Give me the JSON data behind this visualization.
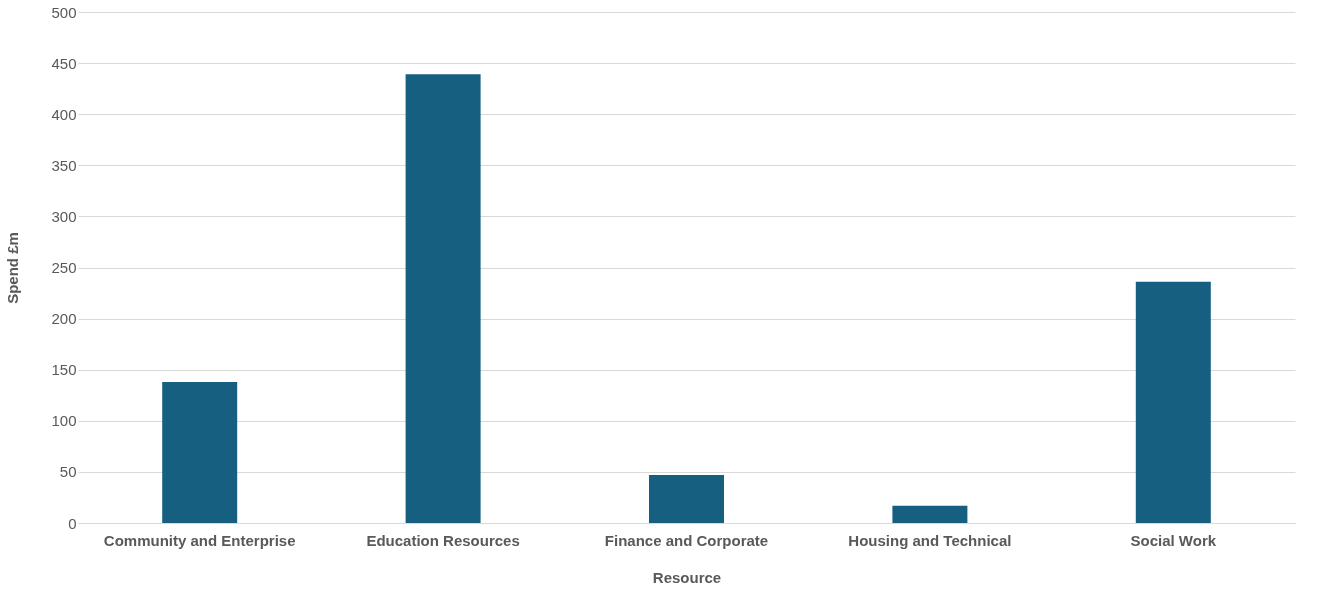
{
  "chart_data": {
    "type": "bar",
    "xlabel": "Resource",
    "ylabel": "Spend £m",
    "categories": [
      "Community and Enterprise",
      "Education Resources",
      "Finance and Corporate",
      "Housing and Technical",
      "Social Work"
    ],
    "values": [
      138,
      439,
      47,
      17,
      236
    ],
    "color": "#165f80",
    "ylim": [
      0,
      500
    ],
    "yticks": [
      0,
      50,
      100,
      150,
      200,
      250,
      300,
      350,
      400,
      450,
      500
    ],
    "grid": "y"
  }
}
